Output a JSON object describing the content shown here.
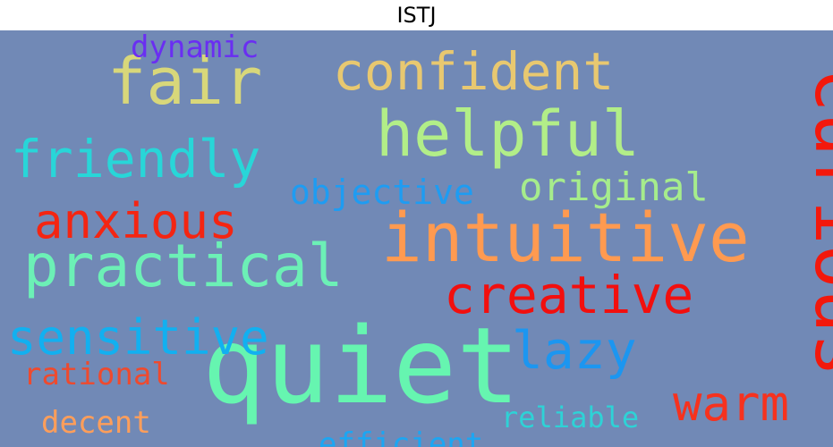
{
  "chart_data": {
    "type": "wordcloud",
    "title": "ISTJ",
    "background": "#7189B6",
    "words": [
      {
        "text": "quiet",
        "color": "#66F5B0"
      },
      {
        "text": "curious",
        "color": "#F3180C"
      },
      {
        "text": "intuitive",
        "color": "#FF9A50"
      },
      {
        "text": "helpful",
        "color": "#B2EE88"
      },
      {
        "text": "fair",
        "color": "#D8D77A"
      },
      {
        "text": "practical",
        "color": "#6CF0B6"
      },
      {
        "text": "friendly",
        "color": "#28D6D8"
      },
      {
        "text": "confident",
        "color": "#E8C870"
      },
      {
        "text": "creative",
        "color": "#F20F0E"
      },
      {
        "text": "anxious",
        "color": "#F42512"
      },
      {
        "text": "sensitive",
        "color": "#12B0F0"
      },
      {
        "text": "warm",
        "color": "#F6321E"
      },
      {
        "text": "lazy",
        "color": "#1C96F0"
      },
      {
        "text": "original",
        "color": "#A6EC8C"
      },
      {
        "text": "objective",
        "color": "#1E9CF2"
      },
      {
        "text": "reliable",
        "color": "#2ED2D6"
      },
      {
        "text": "dynamic",
        "color": "#6A2EF2"
      },
      {
        "text": "rational",
        "color": "#EE4A2E"
      },
      {
        "text": "decent",
        "color": "#FF9E5A"
      },
      {
        "text": "efficient",
        "color": "#1CA6F2"
      }
    ]
  }
}
